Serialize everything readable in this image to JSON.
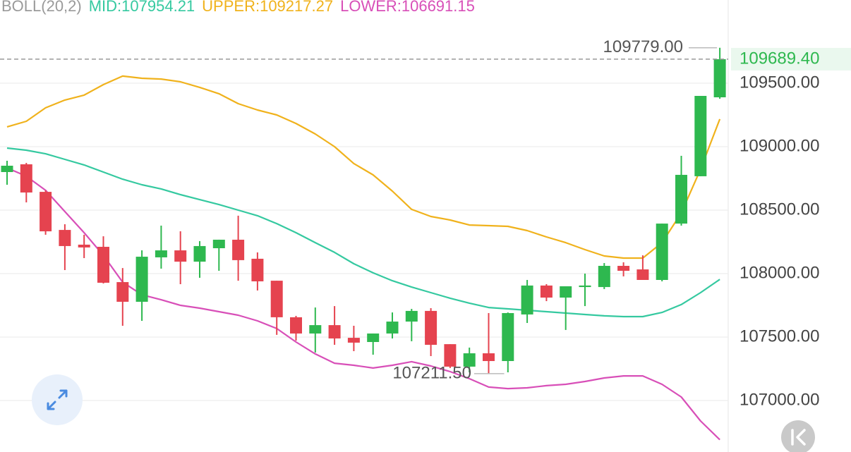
{
  "chart_data": {
    "type": "candlestick",
    "indicator_label": "BOLL(20,2)",
    "indicator_color": "#9a9a9a",
    "open": [
      108800,
      108861,
      108644,
      108344,
      108228,
      108211,
      107933,
      107778,
      108128,
      108183,
      108094,
      108200,
      108267,
      108117,
      107944,
      107656,
      107528,
      107594,
      107494,
      107461,
      107528,
      107622,
      107706,
      107444,
      107267,
      107372,
      107311,
      107678,
      107906,
      107811,
      107894,
      107894,
      108061,
      108033,
      107950,
      108394,
      108767,
      109389
    ],
    "high": [
      108889,
      108872,
      108656,
      108389,
      108306,
      108294,
      108044,
      108183,
      108378,
      108333,
      108256,
      108267,
      108456,
      108167,
      107944,
      107667,
      107733,
      107744,
      107589,
      107528,
      107694,
      107722,
      107728,
      107444,
      107417,
      107689,
      107694,
      107950,
      107917,
      107900,
      108000,
      108083,
      108089,
      108144,
      108394,
      108928,
      109400,
      109779
    ],
    "low": [
      108700,
      108561,
      108306,
      108028,
      108122,
      107922,
      107589,
      107628,
      108039,
      107917,
      107967,
      108022,
      107944,
      107867,
      107517,
      107472,
      107378,
      107439,
      107389,
      107361,
      107489,
      107467,
      107350,
      107256,
      107222,
      107211.5,
      107222,
      107611,
      107783,
      107556,
      107744,
      107878,
      107978,
      107950,
      107939,
      108378,
      108767,
      109378
    ],
    "close": [
      108850,
      108639,
      108333,
      108217,
      108206,
      107928,
      107778,
      108133,
      108183,
      108094,
      108217,
      108267,
      108106,
      107939,
      107656,
      107528,
      107594,
      107489,
      107456,
      107528,
      107622,
      107706,
      107439,
      107267,
      107372,
      107311,
      107689,
      107906,
      107811,
      107900,
      107906,
      108061,
      108022,
      107950,
      108394,
      108778,
      109400,
      109689.4
    ],
    "up_color": "#2eb84f",
    "down_color": "#e5434f",
    "series": [
      {
        "name": "MID:107954.21",
        "color": "#35c9a0",
        "values": [
          108989,
          108972,
          108944,
          108900,
          108856,
          108800,
          108744,
          108700,
          108667,
          108622,
          108583,
          108544,
          108500,
          108456,
          108394,
          108322,
          108244,
          108167,
          108078,
          108006,
          107944,
          107894,
          107850,
          107806,
          107767,
          107733,
          107722,
          107711,
          107700,
          107689,
          107678,
          107667,
          107661,
          107661,
          107694,
          107756,
          107850,
          107954.21
        ]
      },
      {
        "name": "UPPER:109217.27",
        "color": "#f0b21c",
        "values": [
          109156,
          109200,
          109306,
          109367,
          109406,
          109489,
          109556,
          109539,
          109533,
          109511,
          109467,
          109417,
          109339,
          109289,
          109250,
          109183,
          109100,
          109000,
          108867,
          108778,
          108650,
          108506,
          108450,
          108422,
          108383,
          108378,
          108372,
          108339,
          108289,
          108244,
          108189,
          108139,
          108122,
          108122,
          108244,
          108478,
          108822,
          109217.27
        ]
      },
      {
        "name": "LOWER:106691.15",
        "color": "#d84fb8",
        "values": [
          108833,
          108767,
          108656,
          108489,
          108322,
          108144,
          107933,
          107833,
          107794,
          107750,
          107728,
          107700,
          107672,
          107628,
          107567,
          107461,
          107367,
          107294,
          107278,
          107256,
          107278,
          107306,
          107272,
          107228,
          107172,
          107106,
          107094,
          107100,
          107117,
          107128,
          107150,
          107178,
          107194,
          107194,
          107128,
          107028,
          106839,
          106691.15
        ]
      }
    ],
    "ylim": [
      106594.4,
      110155.6
    ],
    "yticks": [
      {
        "value": 107000,
        "label": "107000.00"
      },
      {
        "value": 107500,
        "label": "107500.00"
      },
      {
        "value": 108000,
        "label": "108000.00"
      },
      {
        "value": 108500,
        "label": "108500.00"
      },
      {
        "value": 109000,
        "label": "109000.00"
      },
      {
        "value": 109500,
        "label": "109500.00"
      }
    ],
    "grid": true,
    "last_price": {
      "value": 109689.4,
      "label": "109689.40"
    },
    "high_marker": {
      "value": 109779,
      "label": "109779.00"
    },
    "low_marker": {
      "value": 107211.5,
      "label": "107211.50"
    }
  }
}
